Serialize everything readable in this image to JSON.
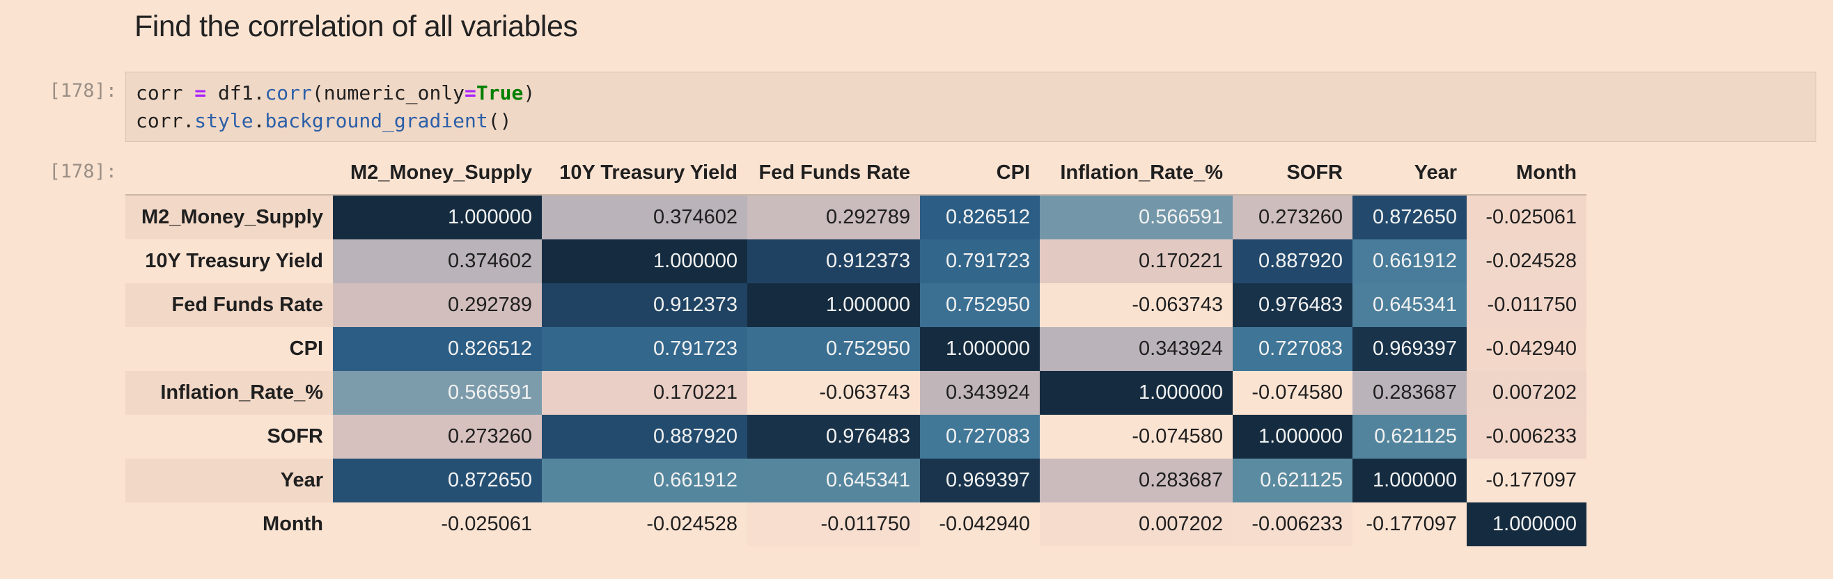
{
  "heading": "Find the correlation of all variables",
  "cell": {
    "in_prompt": "[178]:",
    "out_prompt": "[178]:",
    "code_line1": {
      "a": "corr ",
      "b": "=",
      "c": " df1.",
      "d": "corr",
      "e": "(numeric_only",
      "f": "=",
      "g": "True",
      "h": ")"
    },
    "code_line2": {
      "a": "corr.",
      "b": "style",
      "c": ".",
      "d": "background_gradient",
      "e": "()"
    }
  },
  "table": {
    "columns": [
      "M2_Money_Supply",
      "10Y Treasury Yield",
      "Fed Funds Rate",
      "CPI",
      "Inflation_Rate_%",
      "SOFR",
      "Year",
      "Month"
    ],
    "rows": [
      {
        "label": "M2_Money_Supply",
        "values": [
          "1.000000",
          "0.374602",
          "0.292789",
          "0.826512",
          "0.566591",
          "0.273260",
          "0.872650",
          "-0.025061"
        ]
      },
      {
        "label": "10Y Treasury Yield",
        "values": [
          "0.374602",
          "1.000000",
          "0.912373",
          "0.791723",
          "0.170221",
          "0.887920",
          "0.661912",
          "-0.024528"
        ]
      },
      {
        "label": "Fed Funds Rate",
        "values": [
          "0.292789",
          "0.912373",
          "1.000000",
          "0.752950",
          "-0.063743",
          "0.976483",
          "0.645341",
          "-0.011750"
        ]
      },
      {
        "label": "CPI",
        "values": [
          "0.826512",
          "0.791723",
          "0.752950",
          "1.000000",
          "0.343924",
          "0.727083",
          "0.969397",
          "-0.042940"
        ]
      },
      {
        "label": "Inflation_Rate_%",
        "values": [
          "0.566591",
          "0.170221",
          "-0.063743",
          "0.343924",
          "1.000000",
          "-0.074580",
          "0.283687",
          "0.007202"
        ]
      },
      {
        "label": "SOFR",
        "values": [
          "0.273260",
          "0.887920",
          "0.976483",
          "0.727083",
          "-0.074580",
          "1.000000",
          "0.621125",
          "-0.006233"
        ]
      },
      {
        "label": "Year",
        "values": [
          "0.872650",
          "0.661912",
          "0.645341",
          "0.969397",
          "0.283687",
          "0.621125",
          "1.000000",
          "-0.177097"
        ]
      },
      {
        "label": "Month",
        "values": [
          "-0.025061",
          "-0.024528",
          "-0.011750",
          "-0.042940",
          "0.007202",
          "-0.006233",
          "-0.177097",
          "1.000000"
        ]
      }
    ]
  },
  "colors": {
    "page_bg": "#fbe3d2",
    "gradient_low": "#fbe3d2",
    "gradient_high": "#152c40",
    "dark_text": "#1f1f1f",
    "light_text": "#f1f1f1"
  }
}
